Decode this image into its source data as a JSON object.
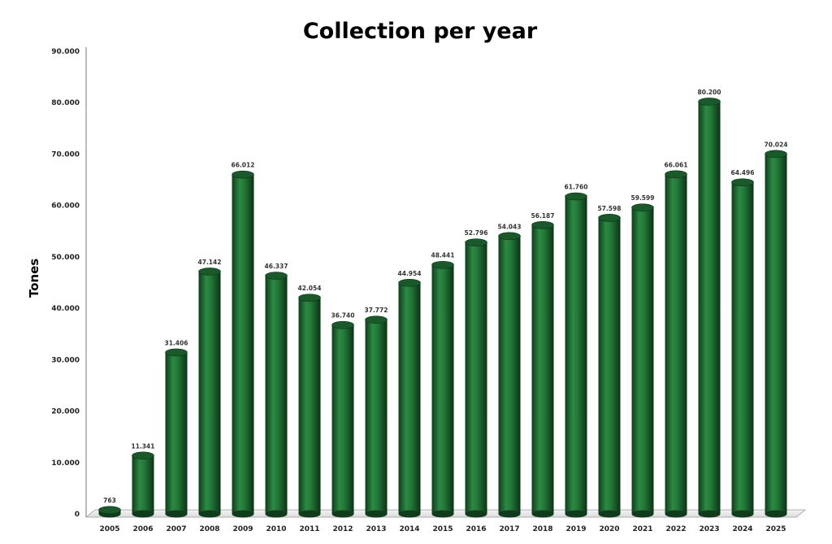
{
  "chart_data": {
    "type": "bar",
    "title": "Collection per year",
    "xlabel": "",
    "ylabel": "Tones",
    "ylim": [
      0,
      90000
    ],
    "yticks": [
      "0",
      "10.000",
      "20.000",
      "30.000",
      "40.000",
      "50.000",
      "60.000",
      "70.000",
      "80.000",
      "90.000"
    ],
    "grid": false,
    "legend": "none",
    "bar_color": "#1e6a30",
    "categories": [
      "2005",
      "2006",
      "2007",
      "2008",
      "2009",
      "2010",
      "2011",
      "2012",
      "2013",
      "2014",
      "2015",
      "2016",
      "2017",
      "2018",
      "2019",
      "2020",
      "2021",
      "2022",
      "2023",
      "2024",
      "2025"
    ],
    "data_labels": [
      "763",
      "11.341",
      "31.406",
      "47.142",
      "66.012",
      "46.337",
      "42.054",
      "36.740",
      "37.772",
      "44.954",
      "48.441",
      "52.796",
      "54.043",
      "56.187",
      "61.760",
      "57.598",
      "59.599",
      "66.061",
      "80.200",
      "64.496",
      "70.024"
    ],
    "values": [
      763,
      11341,
      31406,
      47142,
      66012,
      46337,
      42054,
      36740,
      37772,
      44954,
      48441,
      52796,
      54043,
      56187,
      61760,
      57598,
      59599,
      66061,
      80200,
      64496,
      70024
    ]
  }
}
